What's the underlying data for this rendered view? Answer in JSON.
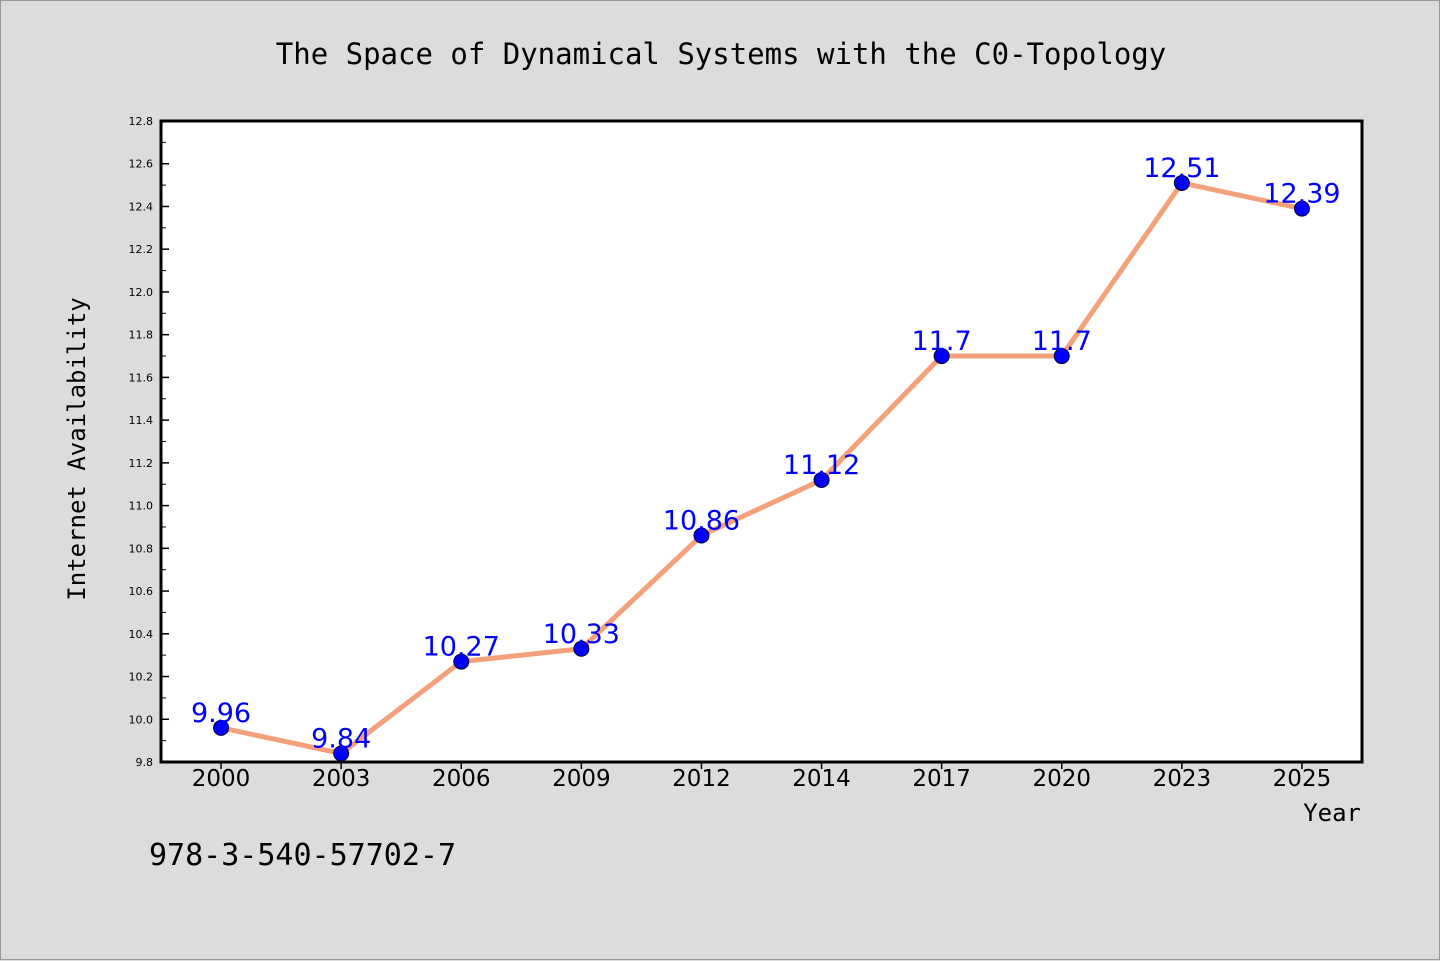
{
  "chart_data": {
    "type": "line",
    "title": "The Space of Dynamical Systems with the C0-Topology",
    "xlabel": "Year",
    "ylabel": "Internet Availability",
    "categories": [
      "2000",
      "2003",
      "2006",
      "2009",
      "2012",
      "2014",
      "2017",
      "2020",
      "2023",
      "2025"
    ],
    "series": [
      {
        "values": [
          9.96,
          9.84,
          10.27,
          10.33,
          10.86,
          11.12,
          11.7,
          11.7,
          12.51,
          12.39
        ]
      }
    ],
    "data_labels": [
      "9.96",
      "9.84",
      "10.27",
      "10.33",
      "10.86",
      "11.12",
      "11.7",
      "11.7",
      "12.51",
      "12.39"
    ],
    "ylim": [
      9.8,
      12.8
    ],
    "yticks": [
      "9.8",
      "10.0",
      "10.2",
      "10.4",
      "10.6",
      "10.8",
      "11.0",
      "11.2",
      "11.4",
      "11.6",
      "11.8",
      "12.0",
      "12.2",
      "12.4",
      "12.6",
      "12.8"
    ],
    "grid": false,
    "colors": {
      "line": "#f4a07a",
      "marker": "#0000ff",
      "label": "#0000ff",
      "background": "#dcdcdc",
      "plot_background": "#ffffff"
    }
  },
  "annotation": "978-3-540-57702-7"
}
